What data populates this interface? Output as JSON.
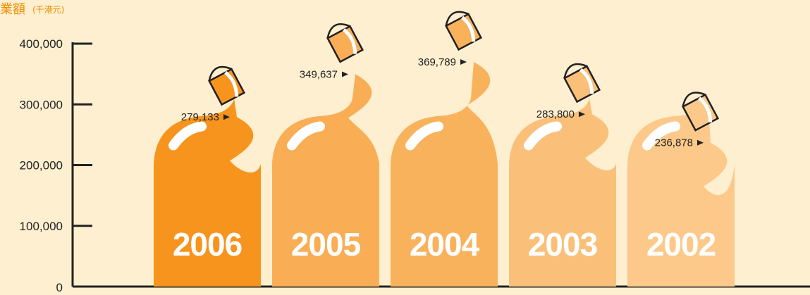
{
  "chart_data": {
    "type": "bar",
    "title": "業額",
    "unit": "(千港元)",
    "categories": [
      "2006",
      "2005",
      "2004",
      "2003",
      "2002"
    ],
    "values": [
      279133,
      349637,
      369789,
      283800,
      236878
    ],
    "value_labels": [
      "279,133",
      "349,637",
      "369,789",
      "283,800",
      "236,878"
    ],
    "yticks": [
      "0",
      "100,000",
      "200,000",
      "300,000",
      "400,000"
    ],
    "ylim": [
      0,
      400000
    ],
    "bar_colors": [
      "#F7941D",
      "#F9AE55",
      "#F9B25C",
      "#FAC07A",
      "#FCC98A"
    ],
    "bucket_colors": [
      "#F7941D",
      "#F9AE55",
      "#F9B25C",
      "#FAC07A",
      "#FCC98A"
    ],
    "shoulder_level": 200000,
    "grid": false,
    "legend": "none"
  }
}
